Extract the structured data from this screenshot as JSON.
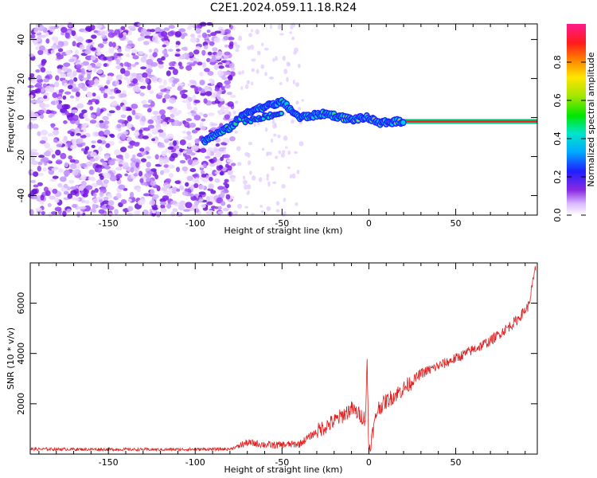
{
  "title": "C2E1.2024.059.11.18.R24",
  "chart_data": [
    {
      "type": "heatmap",
      "xlabel": "Height of straight line (km)",
      "ylabel": "Frequency (Hz)",
      "xlim": [
        -195,
        97
      ],
      "ylim": [
        -50,
        48
      ],
      "xticks": [
        -150,
        -100,
        -50,
        0,
        50
      ],
      "yticks": [
        -40,
        -20,
        0,
        20,
        40
      ],
      "colorbar": {
        "label": "Normalized spectral amplitude",
        "range": [
          0,
          1
        ],
        "ticks": [
          0.0,
          0.2,
          0.4,
          0.6,
          0.8
        ],
        "colormap": "rainbow (purple to red to pink)"
      },
      "features": [
        {
          "name": "noise-region",
          "x_range": [
            -195,
            -78
          ],
          "description": "scattered low-amplitude purple speckle across all frequencies"
        },
        {
          "name": "signal-trace",
          "points": [
            [
              -95,
              -12
            ],
            [
              -80,
              -5
            ],
            [
              -70,
              3
            ],
            [
              -50,
              8
            ],
            [
              -40,
              0
            ],
            [
              -25,
              2
            ],
            [
              -10,
              -1
            ],
            [
              0,
              0
            ],
            [
              5,
              -3
            ],
            [
              15,
              -2
            ],
            [
              20,
              -2
            ],
            [
              97,
              -2
            ]
          ],
          "description": "strong signal line near 0 Hz, amplitude peaking at ~0.9 beyond 20 km"
        }
      ]
    },
    {
      "type": "line",
      "xlabel": "Height of straight line (km)",
      "ylabel": "SNR (10 * v/v)",
      "xlim": [
        -195,
        97
      ],
      "ylim": [
        0,
        7600
      ],
      "xticks": [
        -150,
        -100,
        -50,
        0,
        50
      ],
      "yticks": [
        2000,
        4000,
        6000
      ],
      "series": [
        {
          "color": "#e02020",
          "trend": [
            [
              -195,
              200
            ],
            [
              -120,
              180
            ],
            [
              -80,
              200
            ],
            [
              -70,
              450
            ],
            [
              -55,
              350
            ],
            [
              -40,
              400
            ],
            [
              -30,
              900
            ],
            [
              -20,
              1300
            ],
            [
              -10,
              1800
            ],
            [
              -2,
              1400
            ],
            [
              -1,
              3600
            ],
            [
              0,
              100
            ],
            [
              5,
              1800
            ],
            [
              10,
              2100
            ],
            [
              20,
              2600
            ],
            [
              30,
              3200
            ],
            [
              50,
              3800
            ],
            [
              70,
              4500
            ],
            [
              85,
              5300
            ],
            [
              92,
              5900
            ],
            [
              96,
              7400
            ]
          ]
        }
      ]
    }
  ]
}
